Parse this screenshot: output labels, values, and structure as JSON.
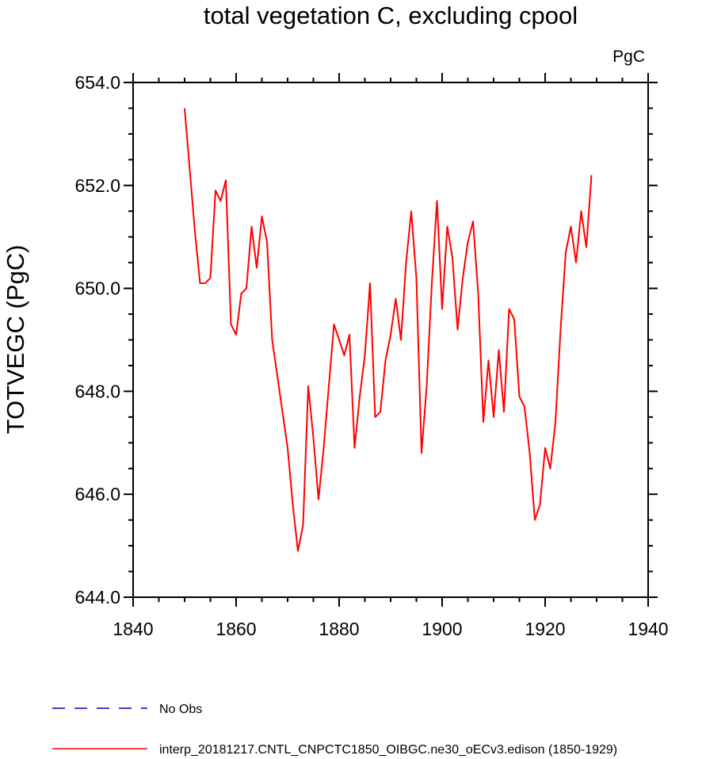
{
  "chart_data": {
    "type": "line",
    "title": "total vegetation C, excluding cpool",
    "units_label": "PgC",
    "xlabel": "",
    "ylabel": "TOTVEGC  (PgC)",
    "xlim": [
      1840,
      1940
    ],
    "ylim": [
      644,
      654
    ],
    "x_ticks": [
      1840,
      1860,
      1880,
      1900,
      1920,
      1940
    ],
    "x_tick_labels": [
      "1840",
      "1860",
      "1880",
      "1900",
      "1920",
      "1940"
    ],
    "y_ticks": [
      644,
      646,
      648,
      650,
      652,
      654
    ],
    "y_tick_labels": [
      "644.0",
      "646.0",
      "648.0",
      "650.0",
      "652.0",
      "654.0"
    ],
    "grid": false,
    "series": [
      {
        "name": "interp_20181217.CNTL_CNPCTC1850_OIBGC.ne30_oECv3.edison (1850-1929)",
        "color": "#ff0000",
        "style": "solid",
        "x": [
          1850,
          1851,
          1852,
          1853,
          1854,
          1855,
          1856,
          1857,
          1858,
          1859,
          1860,
          1861,
          1862,
          1863,
          1864,
          1865,
          1866,
          1867,
          1868,
          1869,
          1870,
          1871,
          1872,
          1873,
          1874,
          1875,
          1876,
          1877,
          1878,
          1879,
          1880,
          1881,
          1882,
          1883,
          1884,
          1885,
          1886,
          1887,
          1888,
          1889,
          1890,
          1891,
          1892,
          1893,
          1894,
          1895,
          1896,
          1897,
          1898,
          1899,
          1900,
          1901,
          1902,
          1903,
          1904,
          1905,
          1906,
          1907,
          1908,
          1909,
          1910,
          1911,
          1912,
          1913,
          1914,
          1915,
          1916,
          1917,
          1918,
          1919,
          1920,
          1921,
          1922,
          1923,
          1924,
          1925,
          1926,
          1927,
          1928,
          1929
        ],
        "values": [
          653.5,
          652.3,
          651.1,
          650.1,
          650.1,
          650.2,
          651.9,
          651.7,
          652.1,
          649.3,
          649.1,
          649.9,
          650.0,
          651.2,
          650.4,
          651.4,
          650.9,
          649.0,
          648.3,
          647.6,
          646.9,
          645.8,
          644.9,
          645.4,
          648.1,
          647.1,
          645.9,
          646.9,
          648.1,
          649.3,
          649.0,
          648.7,
          649.1,
          646.9,
          647.9,
          648.7,
          650.1,
          647.5,
          647.6,
          648.6,
          649.1,
          649.8,
          649.0,
          650.5,
          651.5,
          650.2,
          646.8,
          648.1,
          650.1,
          651.7,
          649.6,
          651.2,
          650.6,
          649.2,
          650.2,
          650.9,
          651.3,
          649.9,
          647.4,
          648.6,
          647.5,
          648.8,
          647.6,
          649.6,
          649.4,
          647.9,
          647.7,
          646.8,
          645.5,
          645.8,
          646.9,
          646.5,
          647.4,
          649.2,
          650.7,
          651.2,
          650.5,
          651.5,
          650.8,
          652.2
        ]
      }
    ]
  },
  "legend": {
    "items": [
      {
        "label": "No Obs",
        "color": "#0000cc",
        "style": "dashed"
      },
      {
        "label": "interp_20181217.CNTL_CNPCTC1850_OIBGC.ne30_oECv3.edison (1850-1929)",
        "color": "#ff0000",
        "style": "solid"
      }
    ]
  }
}
